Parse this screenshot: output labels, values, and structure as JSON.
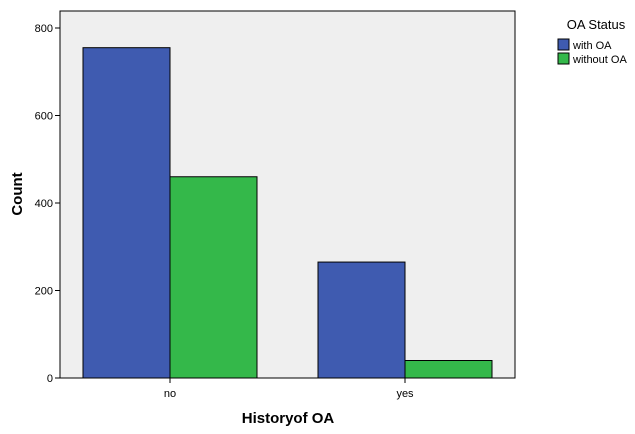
{
  "chart_data": {
    "type": "bar",
    "categories": [
      "no",
      "yes"
    ],
    "series": [
      {
        "name": "with OA",
        "values": [
          755,
          265
        ],
        "color": "#3f5bb0"
      },
      {
        "name": "without OA",
        "values": [
          460,
          40
        ],
        "color": "#34b84a"
      }
    ],
    "xlabel": "Historyof OA",
    "ylabel": "Count",
    "ylim": [
      0,
      840
    ],
    "yticks": [
      0,
      200,
      400,
      600,
      800
    ],
    "legend_title": "OA Status",
    "legend_position": "top-right",
    "plot_background": "#efefef",
    "grid": false
  }
}
